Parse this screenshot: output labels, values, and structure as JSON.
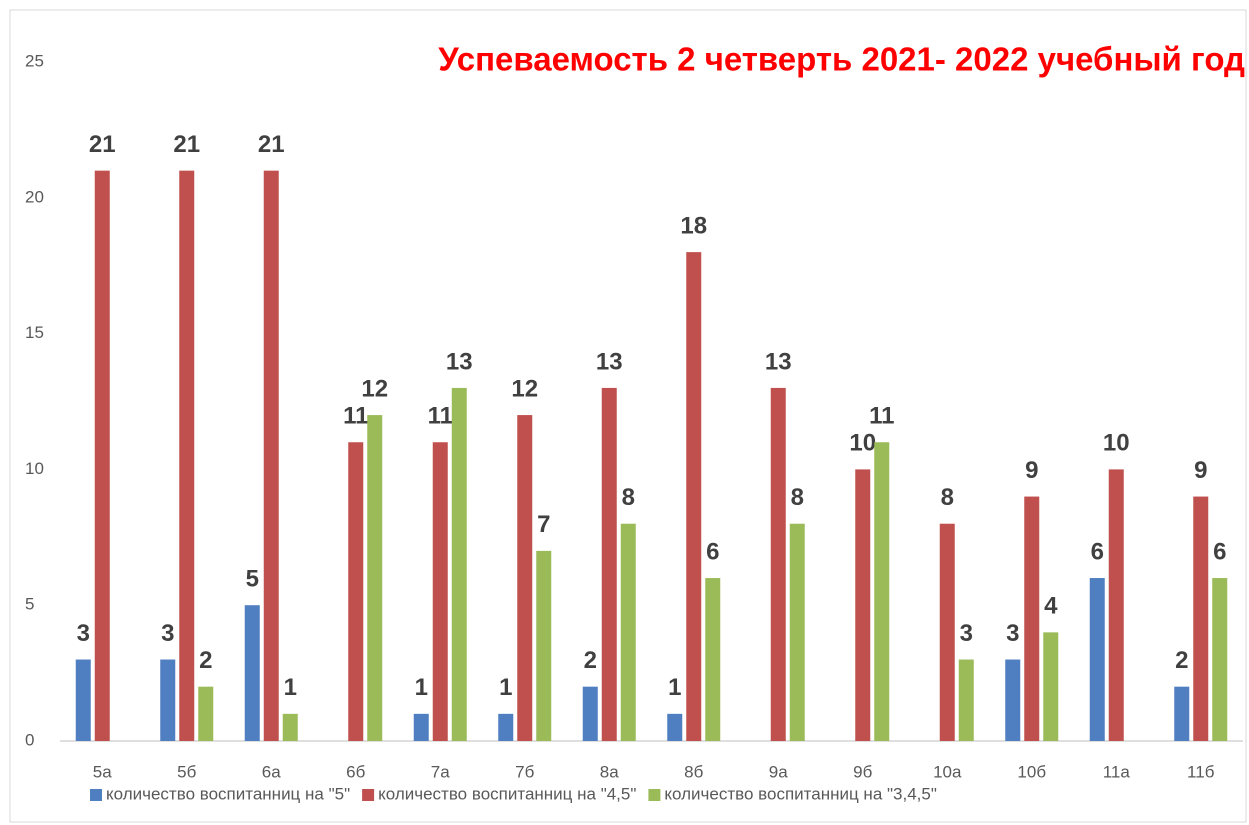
{
  "chart_data": {
    "type": "bar",
    "title": "Успеваемость 2 четверть 2021- 2022 учебный год",
    "categories": [
      "5а",
      "5б",
      "6а",
      "6б",
      "7а",
      "7б",
      "8а",
      "8б",
      "9а",
      "9б",
      "10а",
      "10б",
      "11а",
      "11б"
    ],
    "series": [
      {
        "name": "количество воспитанниц на \"5\"",
        "color": "#4f7fc0",
        "values": [
          3,
          3,
          5,
          null,
          1,
          1,
          2,
          1,
          null,
          null,
          null,
          3,
          6,
          2
        ]
      },
      {
        "name": "количество воспитанниц на \"4,5\"",
        "color": "#c0504d",
        "values": [
          21,
          21,
          21,
          11,
          11,
          12,
          13,
          18,
          13,
          10,
          8,
          9,
          10,
          9
        ]
      },
      {
        "name": "количество воспитанниц на \"3,4,5\"",
        "color": "#9bbb59",
        "values": [
          null,
          2,
          1,
          12,
          13,
          7,
          8,
          6,
          8,
          11,
          3,
          4,
          null,
          6
        ]
      }
    ],
    "ylim": [
      0,
      25
    ],
    "yticks": [
      0,
      5,
      10,
      15,
      20,
      25
    ],
    "grid": false,
    "legend": "bottom"
  }
}
